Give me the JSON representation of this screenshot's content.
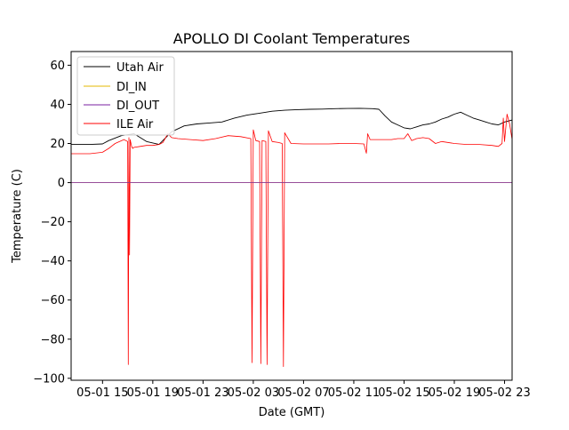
{
  "colors": {
    "utah_air": "#000000",
    "di_in": "#e6b800",
    "di_out": "#7a1fa2",
    "ile_air": "#ff0000",
    "axes": "#000000",
    "background": "#ffffff"
  },
  "chart_data": {
    "type": "line",
    "title": "APOLLO DI Coolant Temperatures",
    "xlabel": "Date (GMT)",
    "ylabel": "Temperature (C)",
    "x_unit": "hours since 05-01 00:00 GMT",
    "xlim": [
      12.5,
      47.6
    ],
    "ylim": [
      -101,
      67
    ],
    "grid": false,
    "legend_position": "top-left",
    "x_ticks": [
      {
        "value": 15,
        "label": "05-01 15"
      },
      {
        "value": 19,
        "label": "05-01 19"
      },
      {
        "value": 23,
        "label": "05-01 23"
      },
      {
        "value": 27,
        "label": "05-02 03"
      },
      {
        "value": 31,
        "label": "05-02 07"
      },
      {
        "value": 35,
        "label": "05-02 11"
      },
      {
        "value": 39,
        "label": "05-02 15"
      },
      {
        "value": 43,
        "label": "05-02 19"
      },
      {
        "value": 47,
        "label": "05-02 23"
      }
    ],
    "y_ticks": [
      {
        "value": 60,
        "label": "60"
      },
      {
        "value": 40,
        "label": "40"
      },
      {
        "value": 20,
        "label": "20"
      },
      {
        "value": 0,
        "label": "0"
      },
      {
        "value": -20,
        "label": "−20"
      },
      {
        "value": -40,
        "label": "−40"
      },
      {
        "value": -60,
        "label": "−60"
      },
      {
        "value": -80,
        "label": "−80"
      },
      {
        "value": -100,
        "label": "−100"
      }
    ],
    "series": [
      {
        "name": "Utah Air",
        "color": "#000000",
        "x": [
          12.5,
          14.0,
          15.0,
          15.5,
          16.5,
          17.5,
          18.5,
          19.5,
          20.5,
          21.5,
          22.5,
          23.5,
          24.5,
          25.5,
          26.5,
          27.5,
          28.5,
          29.5,
          30.5,
          31.5,
          32.5,
          33.5,
          34.5,
          35.5,
          36.5,
          37.0,
          37.5,
          38.0,
          38.5,
          39.0,
          39.5,
          40.0,
          40.5,
          41.0,
          41.5,
          42.0,
          42.5,
          43.0,
          43.5,
          44.0,
          44.5,
          45.0,
          45.5,
          46.0,
          46.5,
          47.0,
          47.6
        ],
        "y": [
          19.5,
          19.5,
          19.8,
          21.5,
          24.0,
          25.0,
          21.0,
          19.5,
          26.0,
          29.0,
          30.0,
          30.5,
          31.0,
          33.0,
          34.5,
          35.5,
          36.5,
          37.0,
          37.3,
          37.5,
          37.6,
          37.8,
          37.9,
          38.0,
          37.8,
          37.5,
          34.0,
          31.0,
          29.5,
          28.0,
          27.5,
          28.5,
          29.5,
          30.0,
          31.0,
          32.5,
          33.5,
          35.0,
          36.0,
          34.5,
          33.0,
          32.0,
          31.0,
          30.0,
          29.5,
          31.0,
          32.0
        ]
      },
      {
        "name": "DI_IN",
        "color": "#e6b800",
        "x": [
          12.5,
          47.6
        ],
        "y": [
          0,
          0
        ]
      },
      {
        "name": "DI_OUT",
        "color": "#7a1fa2",
        "x": [
          12.5,
          47.6
        ],
        "y": [
          0,
          0
        ]
      },
      {
        "name": "ILE Air",
        "color": "#ff0000",
        "x": [
          12.5,
          14.0,
          15.0,
          15.5,
          16.0,
          16.7,
          17.0,
          17.05,
          17.1,
          17.15,
          17.2,
          17.3,
          17.35,
          17.4,
          17.5,
          18.0,
          18.5,
          19.0,
          19.5,
          19.8,
          20.2,
          20.5,
          21.0,
          22.0,
          23.0,
          24.0,
          25.0,
          26.0,
          26.8,
          26.9,
          27.0,
          27.2,
          27.5,
          27.6,
          27.7,
          28.0,
          28.1,
          28.2,
          28.5,
          29.0,
          29.3,
          29.4,
          29.5,
          30.0,
          31.0,
          32.0,
          33.0,
          34.0,
          35.0,
          35.8,
          36.0,
          36.1,
          36.3,
          37.0,
          38.0,
          38.5,
          39.0,
          39.3,
          39.6,
          40.0,
          40.5,
          41.0,
          41.5,
          42.0,
          43.0,
          44.0,
          45.0,
          46.0,
          46.5,
          46.8,
          46.9,
          47.0,
          47.2,
          47.4,
          47.6
        ],
        "y": [
          14.8,
          14.8,
          15.5,
          17.5,
          20.0,
          22.0,
          21.0,
          -93.0,
          23.0,
          -37.0,
          22.0,
          19.0,
          18.0,
          17.5,
          18.0,
          18.5,
          19.0,
          19.0,
          19.5,
          20.5,
          25.0,
          23.0,
          22.5,
          22.0,
          21.5,
          22.5,
          24.0,
          23.5,
          22.5,
          -92.0,
          27.0,
          21.5,
          21.0,
          -92.5,
          21.5,
          21.0,
          -93.0,
          26.5,
          21.0,
          20.5,
          20.0,
          -94.0,
          25.5,
          20.0,
          19.8,
          19.8,
          19.8,
          20.0,
          20.0,
          19.8,
          15.0,
          25.0,
          22.0,
          22.0,
          22.0,
          22.5,
          22.5,
          25.0,
          21.5,
          22.5,
          23.0,
          22.5,
          20.0,
          21.0,
          20.0,
          19.5,
          19.5,
          19.0,
          18.5,
          20.0,
          33.0,
          21.0,
          35.0,
          30.0,
          22.0
        ]
      }
    ]
  }
}
